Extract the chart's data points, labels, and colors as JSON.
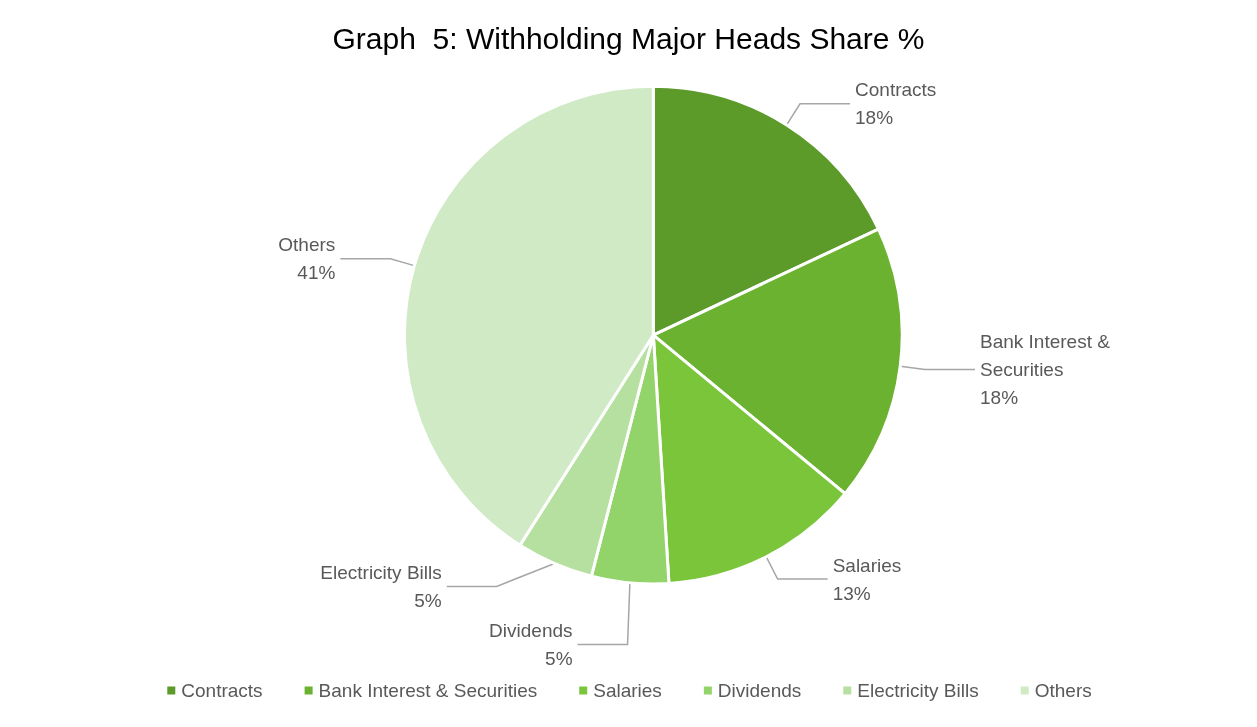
{
  "chart_data": {
    "type": "pie",
    "title": "Graph  5: Withholding Major Heads Share %",
    "categories": [
      "Contracts",
      "Bank Interest & Securities",
      "Salaries",
      "Dividends",
      "Electricity Bills",
      "Others"
    ],
    "values": [
      18,
      18,
      13,
      5,
      5,
      41
    ],
    "value_labels": [
      "18%",
      "18%",
      "13%",
      "5%",
      "5%",
      "41%"
    ],
    "colors": [
      "#5c9a2a",
      "#6ab22f",
      "#7ac53a",
      "#92d46a",
      "#b6e0a0",
      "#cfeac5"
    ],
    "legend": "bottom"
  }
}
